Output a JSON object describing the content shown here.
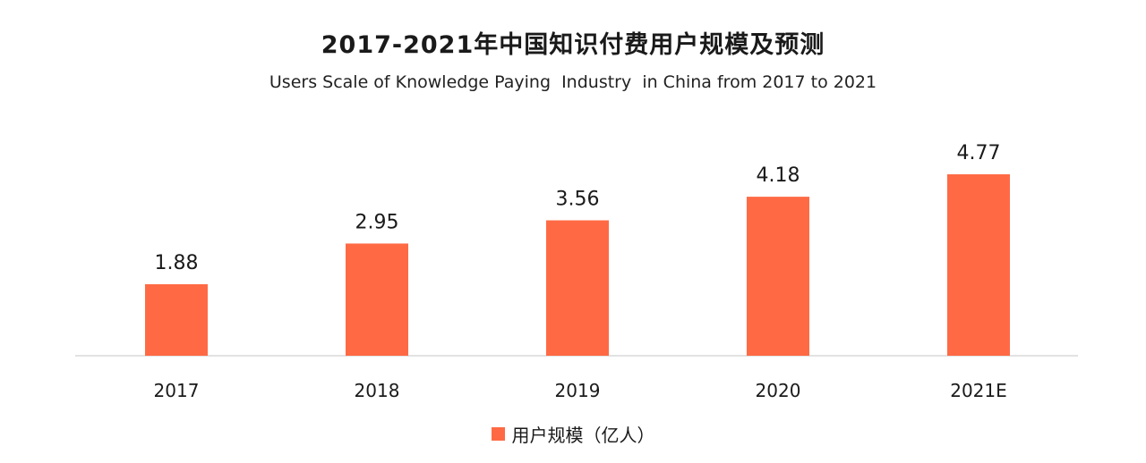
{
  "chart_data": {
    "type": "bar",
    "title": "2017-2021年中国知识付费用户规模及预测",
    "subtitle": "Users Scale of Knowledge Paying  Industry  in China from 2017 to 2021",
    "categories": [
      "2017",
      "2018",
      "2019",
      "2020",
      "2021E"
    ],
    "series": [
      {
        "name": "用户规模（亿人）",
        "values": [
          1.88,
          2.95,
          3.56,
          4.18,
          4.77
        ],
        "labels": [
          "1.88",
          "2.95",
          "3.56",
          "4.18",
          "4.77"
        ]
      }
    ],
    "xlabel": "",
    "ylabel": "",
    "ylim": [
      0,
      4.77
    ],
    "grid": false,
    "legend_position": "bottom-center",
    "colors": {
      "bar": "#ff6a45",
      "axis": "#d9d9d9",
      "text": "#1a1a1a"
    }
  }
}
